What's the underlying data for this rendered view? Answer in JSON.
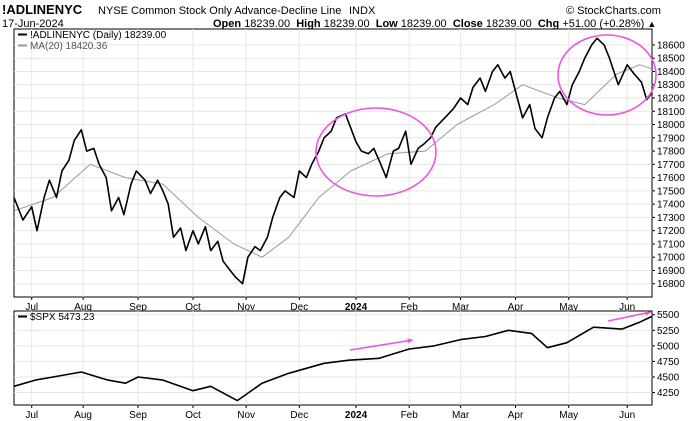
{
  "header": {
    "symbol": "!ADLINENYC",
    "description": "NYSE Common Stock Only Advance-Decline Line",
    "exchange": "INDX",
    "watermark": "© StockCharts.com",
    "date": "17-Jun-2024",
    "open_label": "Open",
    "open_value": "18239.00",
    "high_label": "High",
    "high_value": "18239.00",
    "low_label": "Low",
    "low_value": "18239.00",
    "close_label": "Close",
    "close_value": "18239.00",
    "chg_label": "Chg",
    "chg_value": "+51.00 (+0.28%)",
    "chg_arrow": "▲"
  },
  "colors": {
    "price": "#000000",
    "ma": "#9a9a9a",
    "highlight": "#ee55dd",
    "grid": "#e6e6e6"
  },
  "chart_data": [
    {
      "type": "line",
      "legend": [
        {
          "label": "!ADLINENYC (Daily) 18239.00",
          "color": "#000000"
        },
        {
          "label": "MA(20) 18420.36",
          "color": "#9a9a9a"
        }
      ],
      "x_tick_labels": [
        "Jul",
        "Aug",
        "Sep",
        "Oct",
        "Nov",
        "Dec",
        "2024",
        "Feb",
        "Mar",
        "Apr",
        "May",
        "Jun"
      ],
      "x_tick_dates": [
        "2023-07-03",
        "2023-08-01",
        "2023-09-01",
        "2023-10-02",
        "2023-11-01",
        "2023-12-01",
        "2024-01-02",
        "2024-02-01",
        "2024-03-01",
        "2024-04-01",
        "2024-05-01",
        "2024-06-03"
      ],
      "x_range": [
        "2023-06-23",
        "2024-06-17"
      ],
      "ylim": [
        16700,
        18720
      ],
      "y_ticks": [
        16800,
        16900,
        17000,
        17100,
        17200,
        17300,
        17400,
        17500,
        17600,
        17700,
        17800,
        17900,
        18000,
        18100,
        18200,
        18300,
        18400,
        18500,
        18600
      ],
      "series": [
        {
          "name": "!ADLINENYC (Daily)",
          "points": [
            [
              "2023-06-23",
              17450
            ],
            [
              "2023-06-28",
              17280
            ],
            [
              "2023-07-03",
              17380
            ],
            [
              "2023-07-06",
              17200
            ],
            [
              "2023-07-10",
              17450
            ],
            [
              "2023-07-13",
              17580
            ],
            [
              "2023-07-17",
              17450
            ],
            [
              "2023-07-20",
              17650
            ],
            [
              "2023-07-24",
              17730
            ],
            [
              "2023-07-27",
              17880
            ],
            [
              "2023-07-31",
              17960
            ],
            [
              "2023-08-03",
              17800
            ],
            [
              "2023-08-07",
              17820
            ],
            [
              "2023-08-10",
              17700
            ],
            [
              "2023-08-14",
              17600
            ],
            [
              "2023-08-17",
              17350
            ],
            [
              "2023-08-21",
              17450
            ],
            [
              "2023-08-24",
              17320
            ],
            [
              "2023-08-28",
              17550
            ],
            [
              "2023-08-31",
              17650
            ],
            [
              "2023-09-05",
              17580
            ],
            [
              "2023-09-08",
              17480
            ],
            [
              "2023-09-12",
              17580
            ],
            [
              "2023-09-15",
              17500
            ],
            [
              "2023-09-18",
              17400
            ],
            [
              "2023-09-21",
              17150
            ],
            [
              "2023-09-25",
              17220
            ],
            [
              "2023-09-28",
              17050
            ],
            [
              "2023-10-02",
              17200
            ],
            [
              "2023-10-05",
              17100
            ],
            [
              "2023-10-09",
              17230
            ],
            [
              "2023-10-12",
              17050
            ],
            [
              "2023-10-16",
              17120
            ],
            [
              "2023-10-19",
              16970
            ],
            [
              "2023-10-23",
              16900
            ],
            [
              "2023-10-26",
              16850
            ],
            [
              "2023-10-30",
              16800
            ],
            [
              "2023-11-02",
              17000
            ],
            [
              "2023-11-06",
              17080
            ],
            [
              "2023-11-09",
              17050
            ],
            [
              "2023-11-13",
              17150
            ],
            [
              "2023-11-16",
              17300
            ],
            [
              "2023-11-20",
              17450
            ],
            [
              "2023-11-23",
              17500
            ],
            [
              "2023-11-28",
              17450
            ],
            [
              "2023-12-01",
              17650
            ],
            [
              "2023-12-05",
              17600
            ],
            [
              "2023-12-08",
              17700
            ],
            [
              "2023-12-12",
              17800
            ],
            [
              "2023-12-15",
              17900
            ],
            [
              "2023-12-19",
              17950
            ],
            [
              "2023-12-22",
              18050
            ],
            [
              "2023-12-27",
              18080
            ],
            [
              "2024-01-02",
              17870
            ],
            [
              "2024-01-05",
              17800
            ],
            [
              "2024-01-09",
              17780
            ],
            [
              "2024-01-12",
              17820
            ],
            [
              "2024-01-16",
              17700
            ],
            [
              "2024-01-19",
              17600
            ],
            [
              "2024-01-23",
              17800
            ],
            [
              "2024-01-26",
              17820
            ],
            [
              "2024-01-30",
              17950
            ],
            [
              "2024-02-02",
              17700
            ],
            [
              "2024-02-06",
              17820
            ],
            [
              "2024-02-09",
              17850
            ],
            [
              "2024-02-13",
              17900
            ],
            [
              "2024-02-16",
              17980
            ],
            [
              "2024-02-21",
              18050
            ],
            [
              "2024-02-26",
              18120
            ],
            [
              "2024-03-01",
              18200
            ],
            [
              "2024-03-05",
              18150
            ],
            [
              "2024-03-08",
              18280
            ],
            [
              "2024-03-12",
              18350
            ],
            [
              "2024-03-15",
              18250
            ],
            [
              "2024-03-19",
              18400
            ],
            [
              "2024-03-22",
              18450
            ],
            [
              "2024-03-26",
              18350
            ],
            [
              "2024-03-29",
              18400
            ],
            [
              "2024-04-02",
              18200
            ],
            [
              "2024-04-05",
              18050
            ],
            [
              "2024-04-09",
              18150
            ],
            [
              "2024-04-12",
              17970
            ],
            [
              "2024-04-16",
              17900
            ],
            [
              "2024-04-19",
              18050
            ],
            [
              "2024-04-23",
              18200
            ],
            [
              "2024-04-26",
              18250
            ],
            [
              "2024-04-30",
              18150
            ],
            [
              "2024-05-03",
              18300
            ],
            [
              "2024-05-07",
              18400
            ],
            [
              "2024-05-10",
              18500
            ],
            [
              "2024-05-14",
              18600
            ],
            [
              "2024-05-17",
              18650
            ],
            [
              "2024-05-21",
              18600
            ],
            [
              "2024-05-24",
              18500
            ],
            [
              "2024-05-29",
              18300
            ],
            [
              "2024-06-03",
              18450
            ],
            [
              "2024-06-07",
              18380
            ],
            [
              "2024-06-11",
              18320
            ],
            [
              "2024-06-14",
              18188
            ],
            [
              "2024-06-17",
              18239
            ]
          ]
        },
        {
          "name": "MA(20)",
          "points": [
            [
              "2023-06-23",
              17350
            ],
            [
              "2023-07-15",
              17450
            ],
            [
              "2023-08-05",
              17700
            ],
            [
              "2023-08-25",
              17600
            ],
            [
              "2023-09-15",
              17550
            ],
            [
              "2023-10-05",
              17300
            ],
            [
              "2023-10-25",
              17100
            ],
            [
              "2023-11-10",
              17000
            ],
            [
              "2023-11-25",
              17150
            ],
            [
              "2023-12-12",
              17450
            ],
            [
              "2023-12-30",
              17650
            ],
            [
              "2024-01-20",
              17780
            ],
            [
              "2024-02-10",
              17800
            ],
            [
              "2024-02-28",
              18000
            ],
            [
              "2024-03-20",
              18150
            ],
            [
              "2024-04-05",
              18300
            ],
            [
              "2024-04-25",
              18200
            ],
            [
              "2024-05-10",
              18150
            ],
            [
              "2024-05-28",
              18380
            ],
            [
              "2024-06-10",
              18450
            ],
            [
              "2024-06-17",
              18420
            ]
          ]
        }
      ]
    },
    {
      "type": "line",
      "legend": [
        {
          "label": "$SPX 5473.23",
          "color": "#000000"
        }
      ],
      "x_tick_labels": [
        "Jul",
        "Aug",
        "Sep",
        "Oct",
        "Nov",
        "Dec",
        "2024",
        "Feb",
        "Mar",
        "Apr",
        "May",
        "Jun"
      ],
      "x_range": [
        "2023-06-23",
        "2024-06-17"
      ],
      "ylim": [
        4050,
        5560
      ],
      "y_ticks": [
        4250,
        4500,
        4750,
        5000,
        5250,
        5500
      ],
      "series": [
        {
          "name": "$SPX",
          "points": [
            [
              "2023-06-23",
              4350
            ],
            [
              "2023-07-05",
              4450
            ],
            [
              "2023-07-15",
              4500
            ],
            [
              "2023-07-31",
              4580
            ],
            [
              "2023-08-15",
              4450
            ],
            [
              "2023-08-25",
              4400
            ],
            [
              "2023-09-01",
              4500
            ],
            [
              "2023-09-15",
              4450
            ],
            [
              "2023-10-02",
              4280
            ],
            [
              "2023-10-12",
              4350
            ],
            [
              "2023-10-27",
              4120
            ],
            [
              "2023-11-10",
              4400
            ],
            [
              "2023-11-25",
              4560
            ],
            [
              "2023-12-15",
              4720
            ],
            [
              "2023-12-29",
              4770
            ],
            [
              "2024-01-15",
              4800
            ],
            [
              "2024-02-01",
              4950
            ],
            [
              "2024-02-15",
              5000
            ],
            [
              "2024-03-01",
              5100
            ],
            [
              "2024-03-15",
              5150
            ],
            [
              "2024-03-28",
              5250
            ],
            [
              "2024-04-10",
              5200
            ],
            [
              "2024-04-19",
              4970
            ],
            [
              "2024-04-30",
              5050
            ],
            [
              "2024-05-15",
              5300
            ],
            [
              "2024-05-31",
              5270
            ],
            [
              "2024-06-10",
              5380
            ],
            [
              "2024-06-17",
              5473
            ]
          ]
        }
      ],
      "annotation_arrows": 2
    }
  ]
}
